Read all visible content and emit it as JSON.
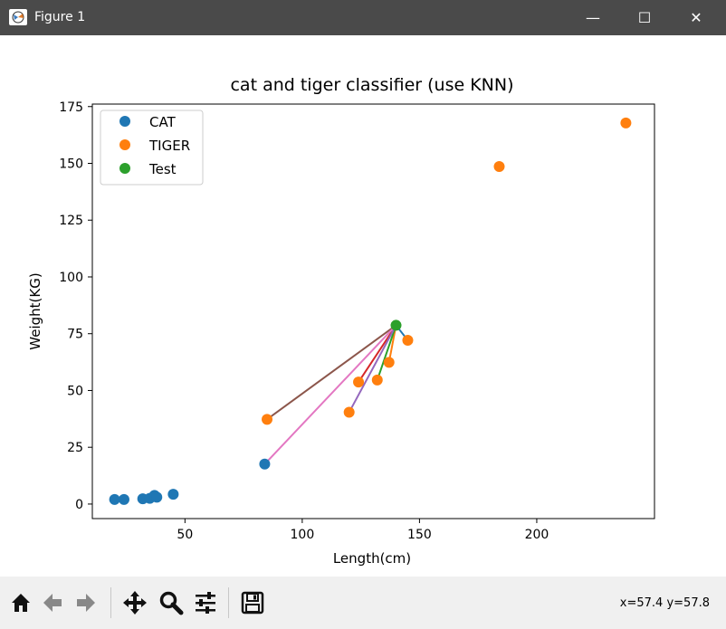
{
  "window": {
    "title": "Figure 1",
    "controls": {
      "minimize": "—",
      "maximize": "☐",
      "close": "✕"
    }
  },
  "toolbar": {
    "buttons": [
      {
        "name": "home-icon"
      },
      {
        "name": "back-arrow-icon"
      },
      {
        "name": "forward-arrow-icon"
      },
      {
        "name": "pan-icon"
      },
      {
        "name": "zoom-icon"
      },
      {
        "name": "configure-subplots-icon"
      },
      {
        "name": "save-icon"
      }
    ],
    "coords": "x=57.4 y=57.8"
  },
  "colors": {
    "cat": "#1f77b4",
    "tiger": "#ff7f0e",
    "test": "#2ca02c",
    "lines": [
      "#1f77b4",
      "#ff7f0e",
      "#2ca02c",
      "#d62728",
      "#9467bd",
      "#8c564b",
      "#e377c2"
    ]
  },
  "chart_data": {
    "type": "scatter",
    "title": "cat and tiger classifier (use KNN)",
    "xlabel": "Length(cm)",
    "ylabel": "Weight(KG)",
    "xlim": [
      10.5,
      250.2
    ],
    "ylim": [
      -6.4,
      176.1
    ],
    "xticks": [
      50,
      100,
      150,
      200
    ],
    "yticks": [
      0,
      25,
      50,
      75,
      100,
      125,
      150,
      175
    ],
    "legend": {
      "position": "top-left",
      "entries": [
        "CAT",
        "TIGER",
        "Test"
      ]
    },
    "grid": false,
    "series": [
      {
        "name": "CAT",
        "x": [
          20,
          24,
          32,
          35,
          37,
          38,
          45,
          84
        ],
        "y": [
          2,
          2,
          2.3,
          2.5,
          3.8,
          3,
          4.3,
          17.6
        ]
      },
      {
        "name": "TIGER",
        "x": [
          85,
          120,
          124,
          132,
          137,
          145,
          184,
          238
        ],
        "y": [
          37.3,
          40.4,
          53.7,
          54.6,
          62.4,
          72.1,
          148.6,
          167.8
        ]
      },
      {
        "name": "Test",
        "x": [
          140
        ],
        "y": [
          78.7
        ]
      }
    ],
    "neighbor_lines": [
      {
        "to": [
          145,
          72.1
        ]
      },
      {
        "to": [
          137,
          62.4
        ]
      },
      {
        "to": [
          132,
          54.6
        ]
      },
      {
        "to": [
          124,
          53.7
        ]
      },
      {
        "to": [
          120,
          40.4
        ]
      },
      {
        "to": [
          85,
          37.3
        ]
      },
      {
        "to": [
          84,
          17.6
        ]
      }
    ]
  }
}
